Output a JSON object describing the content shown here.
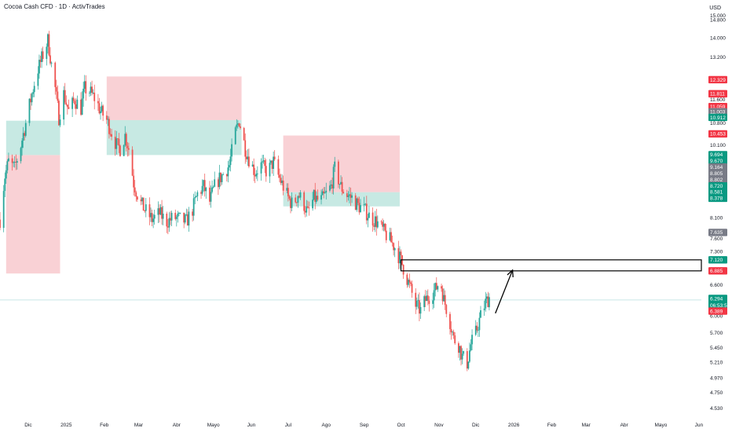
{
  "header": {
    "title": "Cocoa Cash CFD · 1D · ActivTrades",
    "currency": "USD"
  },
  "colors": {
    "up": "#26a69a",
    "down": "#ef5350",
    "zone_green": "#b9e4dc",
    "zone_red": "#f8c6cb",
    "tag_red": "#f23645",
    "tag_green": "#089981",
    "tag_gray": "#787b86"
  },
  "chart_data": {
    "type": "candlestick",
    "symbol": "Cocoa Cash CFD",
    "interval": "1D",
    "y_scale": "log",
    "ylim": [
      4.42,
      15.2
    ],
    "y_ticks": [
      "15.000",
      "14.800",
      "14.000",
      "13.200",
      "12.400",
      "11.600",
      "10.800",
      "10.100",
      "9.400",
      "8.700",
      "8.100",
      "7.600",
      "7.300",
      "6.600",
      "6.200",
      "6.000",
      "5.700",
      "5.450",
      "5.210",
      "4.970",
      "4.750",
      "4.530"
    ],
    "x_ticks": [
      {
        "label": "Dic",
        "date": "2024-12-01"
      },
      {
        "label": "2025",
        "date": "2025-01-01"
      },
      {
        "label": "Feb",
        "date": "2025-02-01"
      },
      {
        "label": "Mar",
        "date": "2025-03-01"
      },
      {
        "label": "Abr",
        "date": "2025-04-01"
      },
      {
        "label": "Mayo",
        "date": "2025-05-01"
      },
      {
        "label": "Jun",
        "date": "2025-06-01"
      },
      {
        "label": "Jul",
        "date": "2025-07-01"
      },
      {
        "label": "Ago",
        "date": "2025-08-01"
      },
      {
        "label": "Sep",
        "date": "2025-09-01"
      },
      {
        "label": "Oct",
        "date": "2025-10-01"
      },
      {
        "label": "Nov",
        "date": "2025-11-01"
      },
      {
        "label": "Dic",
        "date": "2025-12-01"
      },
      {
        "label": "2026",
        "date": "2026-01-01"
      },
      {
        "label": "Feb",
        "date": "2026-02-01"
      },
      {
        "label": "Mar",
        "date": "2026-03-01"
      },
      {
        "label": "Abr",
        "date": "2026-04-01"
      },
      {
        "label": "Mayo",
        "date": "2026-05-01"
      },
      {
        "label": "Jun",
        "date": "2026-06-01"
      }
    ],
    "xlim": [
      "2024-11-08",
      "2026-06-03"
    ],
    "price_path": [
      [
        "2024-11-08",
        8.05
      ],
      [
        "2024-11-12",
        9.2
      ],
      [
        "2024-11-15",
        9.6
      ],
      [
        "2024-11-20",
        9.4
      ],
      [
        "2024-11-25",
        10.1
      ],
      [
        "2024-11-29",
        10.8
      ],
      [
        "2024-12-04",
        11.8
      ],
      [
        "2024-12-08",
        12.6
      ],
      [
        "2024-12-11",
        13.0
      ],
      [
        "2024-12-15",
        13.6
      ],
      [
        "2024-12-17",
        13.9
      ],
      [
        "2024-12-20",
        12.9
      ],
      [
        "2024-12-23",
        12.0
      ],
      [
        "2024-12-26",
        11.0
      ],
      [
        "2024-12-30",
        11.8
      ],
      [
        "2025-01-03",
        11.2
      ],
      [
        "2025-01-08",
        11.6
      ],
      [
        "2025-01-13",
        11.3
      ],
      [
        "2025-01-16",
        12.0
      ],
      [
        "2025-01-20",
        11.9
      ],
      [
        "2025-01-25",
        11.6
      ],
      [
        "2025-01-29",
        11.2
      ],
      [
        "2025-02-03",
        10.9
      ],
      [
        "2025-02-07",
        10.5
      ],
      [
        "2025-02-11",
        10.1
      ],
      [
        "2025-02-14",
        10.0
      ],
      [
        "2025-02-18",
        10.4
      ],
      [
        "2025-02-21",
        10.0
      ],
      [
        "2025-02-25",
        9.0
      ],
      [
        "2025-03-02",
        8.5
      ],
      [
        "2025-03-06",
        8.3
      ],
      [
        "2025-03-12",
        8.05
      ],
      [
        "2025-03-18",
        8.2
      ],
      [
        "2025-03-24",
        8.0
      ],
      [
        "2025-03-30",
        8.1
      ],
      [
        "2025-04-04",
        8.05
      ],
      [
        "2025-04-09",
        8.0
      ],
      [
        "2025-04-14",
        8.3
      ],
      [
        "2025-04-18",
        8.7
      ],
      [
        "2025-04-23",
        8.9
      ],
      [
        "2025-04-28",
        8.5
      ],
      [
        "2025-05-03",
        9.0
      ],
      [
        "2025-05-08",
        9.2
      ],
      [
        "2025-05-14",
        9.5
      ],
      [
        "2025-05-19",
        10.5
      ],
      [
        "2025-05-22",
        10.9
      ],
      [
        "2025-05-27",
        10.0
      ],
      [
        "2025-05-31",
        9.6
      ],
      [
        "2025-06-04",
        9.3
      ],
      [
        "2025-06-09",
        9.5
      ],
      [
        "2025-06-14",
        9.3
      ],
      [
        "2025-06-19",
        9.6
      ],
      [
        "2025-06-23",
        9.2
      ],
      [
        "2025-06-27",
        8.9
      ],
      [
        "2025-07-01",
        8.6
      ],
      [
        "2025-07-05",
        8.4
      ],
      [
        "2025-07-09",
        8.7
      ],
      [
        "2025-07-13",
        8.5
      ],
      [
        "2025-07-17",
        8.2
      ],
      [
        "2025-07-22",
        8.6
      ],
      [
        "2025-07-27",
        8.5
      ],
      [
        "2025-08-01",
        8.7
      ],
      [
        "2025-08-05",
        8.9
      ],
      [
        "2025-08-08",
        9.4
      ],
      [
        "2025-08-13",
        8.9
      ],
      [
        "2025-08-17",
        8.7
      ],
      [
        "2025-08-22",
        8.6
      ],
      [
        "2025-08-27",
        8.4
      ],
      [
        "2025-09-01",
        8.3
      ],
      [
        "2025-09-06",
        8.1
      ],
      [
        "2025-09-11",
        8.0
      ],
      [
        "2025-09-16",
        7.8
      ],
      [
        "2025-09-21",
        7.6
      ],
      [
        "2025-09-26",
        7.4
      ],
      [
        "2025-10-01",
        7.1
      ],
      [
        "2025-10-05",
        6.8
      ],
      [
        "2025-10-09",
        6.5
      ],
      [
        "2025-10-13",
        6.2
      ],
      [
        "2025-10-17",
        6.1
      ],
      [
        "2025-10-21",
        6.3
      ],
      [
        "2025-10-25",
        6.4
      ],
      [
        "2025-10-29",
        6.5
      ],
      [
        "2025-11-02",
        6.7
      ],
      [
        "2025-11-05",
        6.3
      ],
      [
        "2025-11-09",
        6.0
      ],
      [
        "2025-11-13",
        5.6
      ],
      [
        "2025-11-17",
        5.5
      ],
      [
        "2025-11-20",
        5.3
      ],
      [
        "2025-11-24",
        5.2
      ],
      [
        "2025-11-27",
        5.5
      ],
      [
        "2025-12-01",
        5.7
      ],
      [
        "2025-12-05",
        6.0
      ],
      [
        "2025-12-09",
        6.25
      ],
      [
        "2025-12-12",
        6.35
      ]
    ],
    "zones": [
      {
        "color": "red",
        "from": "2024-11-13",
        "to": "2024-12-27",
        "top": 9.8,
        "bottom": 6.83
      },
      {
        "color": "green",
        "from": "2024-11-13",
        "to": "2024-12-27",
        "top": 10.88,
        "bottom": 9.8
      },
      {
        "color": "red",
        "from": "2025-02-03",
        "to": "2025-05-24",
        "top": 12.45,
        "bottom": 10.9
      },
      {
        "color": "green",
        "from": "2025-02-03",
        "to": "2025-05-24",
        "top": 10.9,
        "bottom": 9.8
      },
      {
        "color": "red",
        "from": "2025-06-27",
        "to": "2025-09-30",
        "top": 10.4,
        "bottom": 8.75
      },
      {
        "color": "green",
        "from": "2025-06-27",
        "to": "2025-09-30",
        "top": 8.75,
        "bottom": 8.38
      }
    ],
    "resistance_box": {
      "from": "2025-10-01",
      "top": 7.12,
      "bottom": 6.885
    },
    "arrow": {
      "from_date": "2025-12-17",
      "from_price": 6.05,
      "to_date": "2025-12-31",
      "to_price": 6.9
    },
    "price_tags": [
      {
        "label": "12.329",
        "color": "red",
        "value": 12.329
      },
      {
        "label": "11.811",
        "color": "red",
        "value": 11.811
      },
      {
        "label": "11.059",
        "color": "red",
        "value": 11.36
      },
      {
        "label": "11.003",
        "color": "gray",
        "value": 11.18
      },
      {
        "label": "10.912",
        "color": "green",
        "value": 10.99
      },
      {
        "label": "10.453",
        "color": "red",
        "value": 10.453
      },
      {
        "label": "9.694",
        "color": "green",
        "value": 9.81
      },
      {
        "label": "9.670",
        "color": "green",
        "value": 9.63
      },
      {
        "label": "9.164",
        "color": "gray",
        "value": 9.45
      },
      {
        "label": "8.805",
        "color": "gray",
        "value": 9.27
      },
      {
        "label": "8.802",
        "color": "gray",
        "value": 9.09
      },
      {
        "label": "8.720",
        "color": "green",
        "value": 8.92
      },
      {
        "label": "8.581",
        "color": "green",
        "value": 8.76
      },
      {
        "label": "8.378",
        "color": "green",
        "value": 8.59
      },
      {
        "label": "7.635",
        "color": "gray",
        "value": 7.74
      },
      {
        "label": "7.120",
        "color": "green",
        "value": 7.12
      },
      {
        "label": "6.885",
        "color": "red",
        "value": 6.885
      },
      {
        "label": "6.294",
        "sublabel": "06:53:53",
        "color": "green",
        "value": 6.33
      },
      {
        "label": "6.389",
        "color": "red",
        "value": 6.09
      }
    ],
    "last_price": 6.3
  }
}
